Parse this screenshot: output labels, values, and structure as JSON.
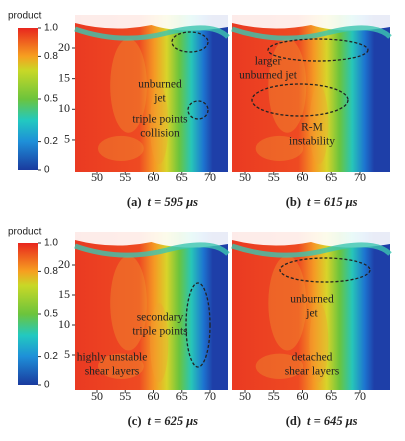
{
  "colorbar": {
    "title": "product",
    "ticks": [
      {
        "value": 1,
        "label": "1.0"
      },
      {
        "value": 0.8,
        "label": "0.8"
      },
      {
        "value": 0.5,
        "label": "0.5"
      },
      {
        "value": 0.2,
        "label": "0.2"
      },
      0
    ]
  },
  "panels": [
    {
      "label": "(a)",
      "time": "t = 595 μs",
      "xticks": [
        50,
        55,
        60,
        65,
        70
      ],
      "yticks": [
        20,
        15,
        10,
        5
      ],
      "annotations": [
        [
          "unburned",
          "jet"
        ],
        [
          "triple points",
          "collision"
        ]
      ]
    },
    {
      "label": "(b)",
      "time": "t = 615 μs",
      "xticks": [
        50,
        55,
        60,
        65,
        70
      ],
      "yticks": [],
      "annotations": [
        [
          "larger",
          "unburned jet"
        ],
        [
          "R-M",
          "instability"
        ]
      ]
    },
    {
      "label": "(c)",
      "time": "t = 625 μs",
      "xticks": [
        50,
        55,
        60,
        65,
        70
      ],
      "yticks": [
        20,
        15,
        10,
        5
      ],
      "annotations": [
        [
          "secondary",
          "triple points"
        ],
        [
          "highly unstable",
          "shear layers"
        ]
      ]
    },
    {
      "label": "(d)",
      "time": "t = 645 μs",
      "xticks": [
        50,
        55,
        60,
        65,
        70
      ],
      "yticks": [],
      "annotations": [
        [
          "unburned",
          "jet"
        ],
        [
          "detached",
          "shear layers"
        ]
      ]
    }
  ]
}
